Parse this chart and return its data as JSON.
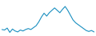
{
  "x": [
    0,
    1,
    2,
    3,
    4,
    5,
    6,
    7,
    8,
    9,
    10,
    11,
    12,
    13,
    14,
    15,
    16,
    17,
    18,
    19,
    20,
    21,
    22,
    23,
    24,
    25,
    26,
    27,
    28,
    29,
    30,
    31,
    32,
    33,
    34,
    35
  ],
  "y": [
    30,
    29,
    33,
    24,
    31,
    27,
    25,
    29,
    27,
    30,
    32,
    30,
    34,
    38,
    46,
    56,
    64,
    58,
    65,
    70,
    75,
    70,
    65,
    72,
    78,
    70,
    60,
    50,
    44,
    40,
    36,
    32,
    28,
    26,
    28,
    25
  ],
  "line_color": "#1a8fc0",
  "line_width": 0.8,
  "bg_color": "#ffffff",
  "ylim": [
    18,
    90
  ],
  "xlim": [
    0,
    35
  ]
}
